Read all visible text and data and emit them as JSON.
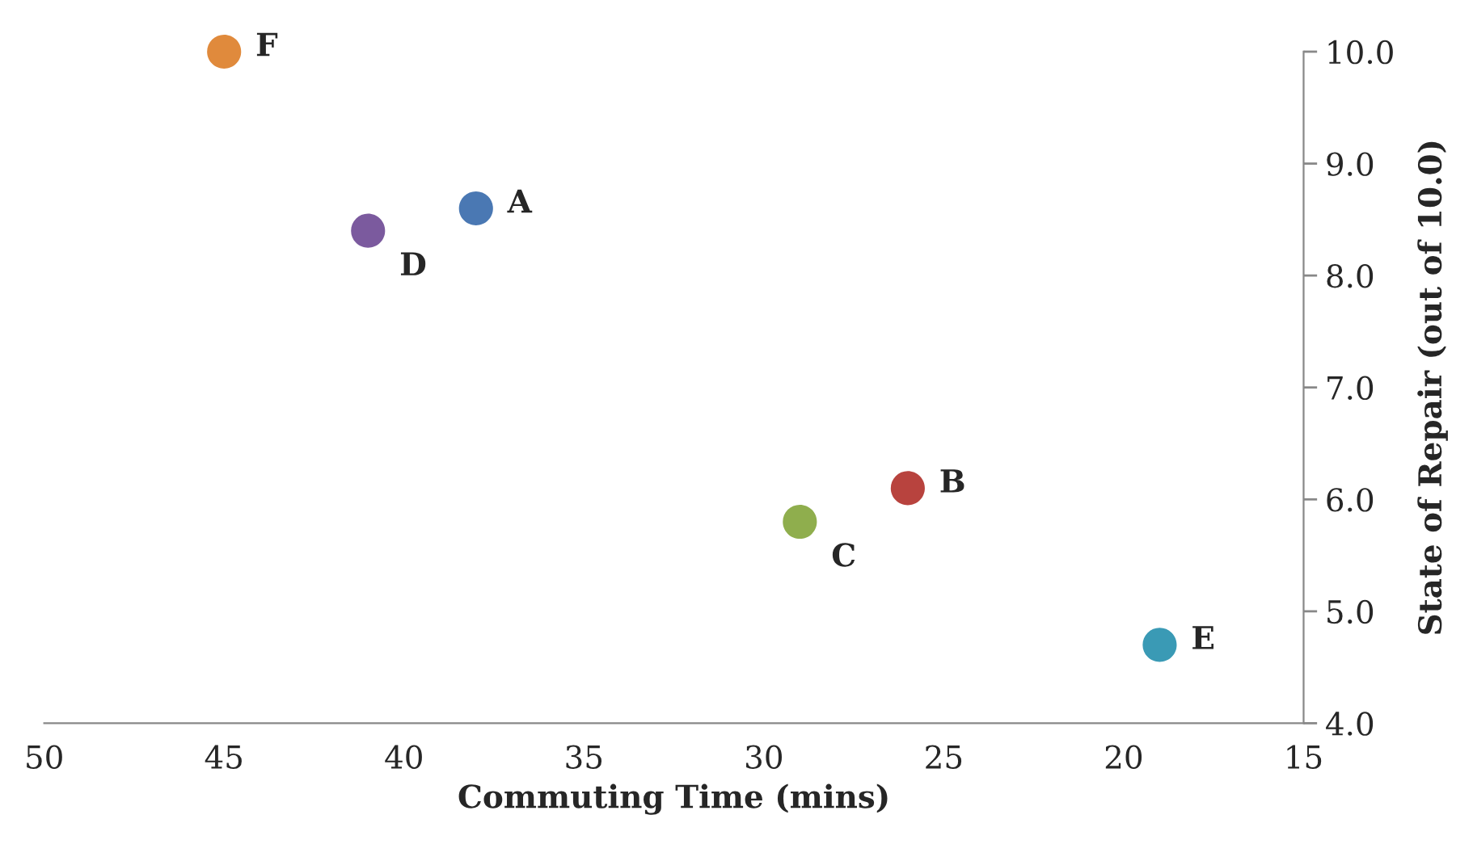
{
  "chart_data": {
    "type": "scatter",
    "xlabel": "Commuting Time (mins)",
    "ylabel": "State of Repair (out of 10.0)",
    "xlim": [
      50,
      15
    ],
    "xticks": [
      50,
      45,
      40,
      35,
      30,
      25,
      20,
      15
    ],
    "ylim": [
      4.0,
      10.0
    ],
    "yticks": [
      {
        "value": 4,
        "label": "4.0"
      },
      {
        "value": 5,
        "label": "5.0"
      },
      {
        "value": 6,
        "label": "6.0"
      },
      {
        "value": 7,
        "label": "7.0"
      },
      {
        "value": 8,
        "label": "8.0"
      },
      {
        "value": 9,
        "label": "9.0"
      },
      {
        "value": 10,
        "label": "10.0"
      }
    ],
    "grid": false,
    "legend": false,
    "marker": "circle",
    "series": [
      {
        "name": "A",
        "color": "#4a78b3",
        "x": [
          38
        ],
        "values": [
          8.6
        ]
      },
      {
        "name": "B",
        "color": "#b8433e",
        "x": [
          26
        ],
        "values": [
          6.1
        ]
      },
      {
        "name": "C",
        "color": "#8fae4d",
        "x": [
          29
        ],
        "values": [
          5.8
        ]
      },
      {
        "name": "D",
        "color": "#7b5a9e",
        "x": [
          41
        ],
        "values": [
          8.4
        ]
      },
      {
        "name": "E",
        "color": "#3a9ab5",
        "x": [
          19
        ],
        "values": [
          4.7
        ]
      },
      {
        "name": "F",
        "color": "#e08a3c",
        "x": [
          45
        ],
        "values": [
          10.0
        ]
      }
    ]
  }
}
